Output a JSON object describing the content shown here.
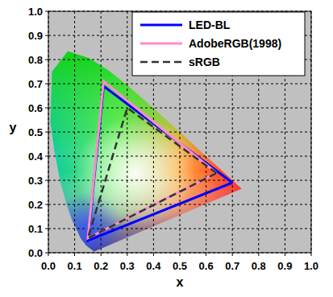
{
  "chart_data": {
    "type": "line",
    "x_label": "x",
    "y_label": "y",
    "xlim": [
      0,
      1
    ],
    "ylim": [
      0,
      1
    ],
    "xticks": [
      {
        "value": 0,
        "label": "0.0"
      },
      0.1,
      0.2,
      0.3,
      0.4,
      0.5,
      0.6,
      0.7,
      0.8,
      0.9,
      {
        "value": 1,
        "label": "1.0"
      }
    ],
    "yticks": [
      {
        "value": 0,
        "label": "0.0"
      },
      0.1,
      0.2,
      0.3,
      0.4,
      0.5,
      0.6,
      0.7,
      0.8,
      0.9,
      {
        "value": 1,
        "label": "1.0"
      }
    ],
    "grid": true,
    "legend": "upper right",
    "series": [
      {
        "type": "area",
        "x": [
          0.174,
          0.144,
          0.124,
          0.091,
          0.069,
          0.045,
          0.024,
          0.008,
          0.014,
          0.074,
          0.155,
          0.23,
          0.302,
          0.373,
          0.444,
          0.513,
          0.575,
          0.627,
          0.666,
          0.692,
          0.735
        ],
        "values": [
          0.005,
          0.03,
          0.058,
          0.133,
          0.201,
          0.295,
          0.413,
          0.538,
          0.75,
          0.834,
          0.806,
          0.754,
          0.692,
          0.625,
          0.555,
          0.487,
          0.424,
          0.373,
          0.334,
          0.308,
          0.265
        ]
      },
      {
        "name": "LED-BL",
        "color": "#0000ff",
        "line_style": "solid",
        "x": [
          0.7,
          0.21,
          0.15,
          0.7
        ],
        "values": [
          0.29,
          0.69,
          0.05,
          0.29
        ]
      },
      {
        "name": "AdobeRGB(1998)",
        "color": "#ff8cc6",
        "line_style": "solid",
        "x": [
          0.64,
          0.21,
          0.15,
          0.64
        ],
        "values": [
          0.33,
          0.71,
          0.06,
          0.33
        ]
      },
      {
        "name": "sRGB",
        "color": "#333333",
        "line_style": "dashed",
        "x": [
          0.64,
          0.3,
          0.15,
          0.64
        ],
        "values": [
          0.33,
          0.6,
          0.06,
          0.33
        ]
      }
    ]
  }
}
